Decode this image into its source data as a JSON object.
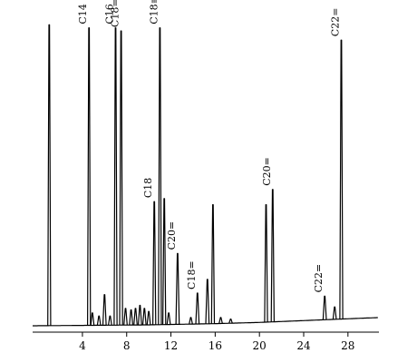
{
  "chart_data": {
    "type": "line",
    "title": "",
    "xlabel": "",
    "ylabel": "",
    "xlim": [
      -0.5,
      30.8
    ],
    "ylim": [
      0,
      100
    ],
    "x_ticks": [
      4,
      8,
      12,
      16,
      20,
      24,
      28
    ],
    "x_tick_labels": [
      "4",
      "8",
      "12",
      "16",
      "20",
      "24",
      "28"
    ],
    "baseline": [
      {
        "x": -0.5,
        "y": 0.3
      },
      {
        "x": 10.0,
        "y": 0.6
      },
      {
        "x": 16.0,
        "y": 1.0
      },
      {
        "x": 20.0,
        "y": 1.4
      },
      {
        "x": 24.0,
        "y": 2.0
      },
      {
        "x": 28.0,
        "y": 2.6
      },
      {
        "x": 30.8,
        "y": 3.0
      }
    ],
    "peaks": [
      {
        "x": 1.0,
        "y": 99.0,
        "label": ""
      },
      {
        "x": 4.6,
        "y": 98.0,
        "label": "C14"
      },
      {
        "x": 4.9,
        "y": 4.5,
        "label": ""
      },
      {
        "x": 5.5,
        "y": 3.5,
        "label": ""
      },
      {
        "x": 6.0,
        "y": 10.5,
        "label": ""
      },
      {
        "x": 6.5,
        "y": 3.5,
        "label": ""
      },
      {
        "x": 7.0,
        "y": 98.0,
        "label": "C16"
      },
      {
        "x": 7.5,
        "y": 97.0,
        "label": "C18="
      },
      {
        "x": 7.9,
        "y": 6.0,
        "label": ""
      },
      {
        "x": 8.4,
        "y": 5.5,
        "label": ""
      },
      {
        "x": 8.8,
        "y": 6.0,
        "label": ""
      },
      {
        "x": 9.2,
        "y": 7.0,
        "label": ""
      },
      {
        "x": 9.6,
        "y": 6.0,
        "label": ""
      },
      {
        "x": 10.0,
        "y": 5.0,
        "label": ""
      },
      {
        "x": 10.5,
        "y": 41.0,
        "label": "C18"
      },
      {
        "x": 11.0,
        "y": 98.0,
        "label": "C18≡"
      },
      {
        "x": 11.4,
        "y": 42.0,
        "label": ""
      },
      {
        "x": 11.8,
        "y": 4.5,
        "label": ""
      },
      {
        "x": 12.6,
        "y": 24.0,
        "label": "C20="
      },
      {
        "x": 13.8,
        "y": 3.0,
        "label": ""
      },
      {
        "x": 14.4,
        "y": 11.0,
        "label": "C18="
      },
      {
        "x": 15.3,
        "y": 15.5,
        "label": ""
      },
      {
        "x": 15.8,
        "y": 40.0,
        "label": ""
      },
      {
        "x": 16.5,
        "y": 3.0,
        "label": ""
      },
      {
        "x": 17.4,
        "y": 2.5,
        "label": ""
      },
      {
        "x": 20.6,
        "y": 40.0,
        "label": ""
      },
      {
        "x": 21.2,
        "y": 45.0,
        "label": "C20="
      },
      {
        "x": 25.9,
        "y": 10.0,
        "label": "C22="
      },
      {
        "x": 26.8,
        "y": 6.5,
        "label": ""
      },
      {
        "x": 27.4,
        "y": 94.0,
        "label": "C22="
      }
    ]
  }
}
